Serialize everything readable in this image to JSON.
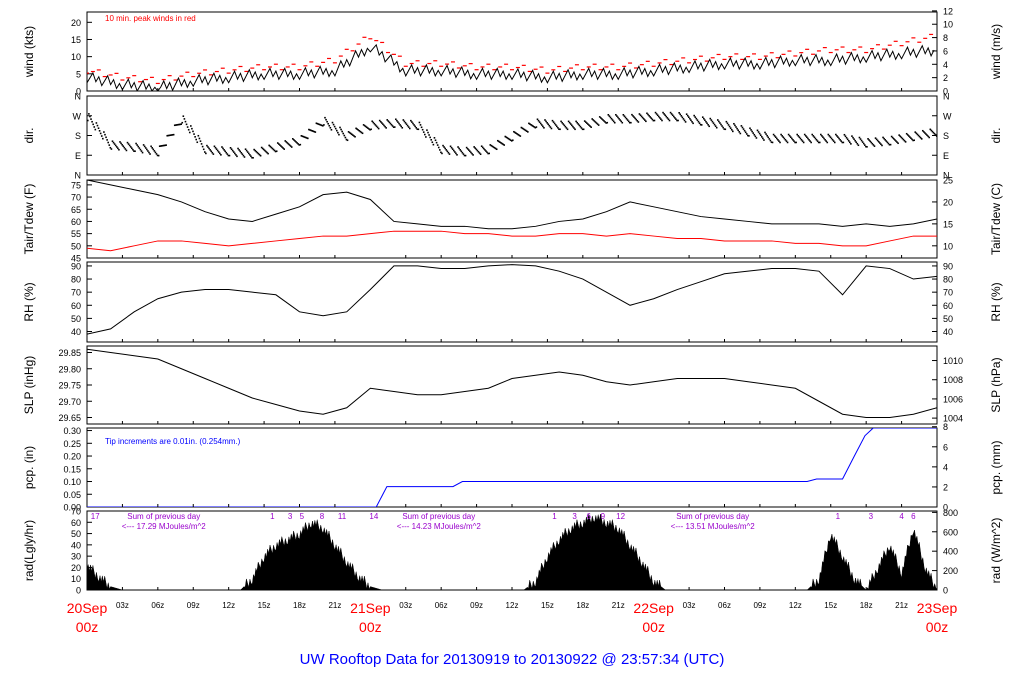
{
  "figure": {
    "footer": "UW Rooftop Data for 20130919  to  20130922 @ 23:57:34  (UTC)",
    "colors": {
      "black": "#000000",
      "red": "#ff0000",
      "blue": "#0000ff",
      "purple": "#9900cc",
      "footer": "#0000ff",
      "dates": "#ff0000"
    }
  },
  "chart_data": [
    {
      "panel": "wind",
      "type": "line",
      "ylabel_left": "wind (kts)",
      "ylabel_right": "wind (m/s)",
      "left_ticks": [
        "0",
        "5",
        "10",
        "15",
        "20"
      ],
      "right_ticks": [
        "0",
        "2",
        "4",
        "6",
        "8",
        "10",
        "12"
      ],
      "ylim": [
        0,
        23
      ],
      "annotation": "10 min. peak winds in red",
      "x_hours": [
        0,
        3,
        6,
        9,
        12,
        15,
        18,
        21,
        24,
        27,
        30,
        33,
        36,
        39,
        42,
        45,
        48,
        51,
        54,
        57,
        60,
        63,
        66,
        69,
        72
      ],
      "series": [
        {
          "name": "10 min. peak winds",
          "color": "#ff0000",
          "values": [
            6,
            4,
            3,
            5,
            6,
            7,
            7,
            9,
            16,
            8,
            8,
            7,
            7,
            6,
            7,
            7,
            8,
            9,
            10,
            10,
            11,
            12,
            12,
            14,
            16
          ]
        },
        {
          "values": [
            4,
            2,
            1,
            3,
            4,
            5,
            5,
            6,
            13,
            6,
            6,
            5,
            5,
            4,
            5,
            5,
            6,
            7,
            8,
            8,
            9,
            9,
            10,
            11,
            12
          ]
        }
      ]
    },
    {
      "panel": "dir",
      "type": "scatter",
      "ylabel_left": "dir.",
      "ylabel_right": "dir.",
      "left_ticks": [
        "N",
        "E",
        "S",
        "W",
        "N"
      ],
      "right_ticks": [
        "N",
        "E",
        "S",
        "W",
        "N"
      ],
      "ylim": [
        0,
        360
      ],
      "x_hours": [
        0,
        2,
        4,
        6,
        8,
        10,
        12,
        14,
        16,
        18,
        20,
        22,
        24,
        26,
        28,
        30,
        32,
        34,
        36,
        38,
        40,
        42,
        44,
        46,
        48,
        50,
        52,
        54,
        56,
        58,
        60,
        62,
        64,
        66,
        68,
        70,
        72
      ],
      "values": [
        270,
        140,
        130,
        110,
        260,
        120,
        110,
        100,
        130,
        160,
        250,
        180,
        230,
        240,
        230,
        120,
        110,
        120,
        180,
        240,
        230,
        230,
        260,
        260,
        270,
        270,
        250,
        230,
        200,
        170,
        170,
        170,
        170,
        150,
        160,
        180,
        200
      ]
    },
    {
      "panel": "temperature",
      "type": "line",
      "ylabel_left": "Tair/Tdew (F)",
      "ylabel_right": "Tair/Tdew (C)",
      "left_ticks": [
        "45",
        "50",
        "55",
        "60",
        "65",
        "70",
        "75"
      ],
      "right_ticks": [
        "10",
        "15",
        "20",
        "25"
      ],
      "ylim": [
        45,
        77
      ],
      "x_hours": [
        0,
        2,
        4,
        6,
        8,
        10,
        12,
        14,
        16,
        18,
        20,
        22,
        24,
        26,
        28,
        30,
        32,
        34,
        36,
        38,
        40,
        42,
        44,
        46,
        48,
        50,
        52,
        54,
        56,
        58,
        60,
        62,
        64,
        66,
        68,
        70,
        72
      ],
      "series": [
        {
          "name": "Tair",
          "color": "#000000",
          "values": [
            77,
            75,
            73,
            71,
            68,
            64,
            61,
            60,
            63,
            66,
            71,
            72,
            69,
            60,
            59,
            58,
            58,
            57,
            57,
            58,
            60,
            61,
            64,
            68,
            66,
            64,
            62,
            61,
            60,
            59,
            59,
            59,
            58,
            59,
            58,
            59,
            61
          ]
        },
        {
          "name": "Tdew",
          "color": "#ff0000",
          "values": [
            49,
            48,
            50,
            52,
            52,
            51,
            50,
            51,
            52,
            53,
            54,
            54,
            55,
            56,
            56,
            56,
            55,
            55,
            54,
            54,
            55,
            55,
            54,
            55,
            54,
            53,
            53,
            52,
            52,
            52,
            51,
            51,
            50,
            50,
            52,
            54,
            54
          ]
        }
      ]
    },
    {
      "panel": "rh",
      "type": "line",
      "ylabel_left": "RH (%)",
      "ylabel_right": "RH (%)",
      "left_ticks": [
        "40",
        "50",
        "60",
        "70",
        "80",
        "90"
      ],
      "right_ticks": [
        "40",
        "50",
        "60",
        "70",
        "80",
        "90"
      ],
      "ylim": [
        32,
        93
      ],
      "x_hours": [
        0,
        2,
        4,
        6,
        8,
        10,
        12,
        14,
        16,
        18,
        20,
        22,
        24,
        26,
        28,
        30,
        32,
        34,
        36,
        38,
        40,
        42,
        44,
        46,
        48,
        50,
        52,
        54,
        56,
        58,
        60,
        62,
        64,
        66,
        68,
        70,
        72
      ],
      "values": [
        38,
        42,
        55,
        65,
        70,
        72,
        72,
        70,
        68,
        55,
        52,
        55,
        72,
        90,
        90,
        88,
        88,
        90,
        91,
        90,
        86,
        80,
        70,
        60,
        65,
        72,
        78,
        84,
        86,
        88,
        88,
        86,
        68,
        90,
        88,
        80,
        82
      ]
    },
    {
      "panel": "slp",
      "type": "line",
      "ylabel_left": "SLP (inHg)",
      "ylabel_right": "SLP (hPa)",
      "left_ticks": [
        "29.65",
        "29.70",
        "29.75",
        "29.80",
        "29.85"
      ],
      "right_ticks": [
        "1004",
        "1006",
        "1008",
        "1010"
      ],
      "ylim": [
        29.63,
        29.87
      ],
      "x_hours": [
        0,
        2,
        4,
        6,
        8,
        10,
        12,
        14,
        16,
        18,
        20,
        22,
        24,
        26,
        28,
        30,
        32,
        34,
        36,
        38,
        40,
        42,
        44,
        46,
        48,
        50,
        52,
        54,
        56,
        58,
        60,
        62,
        64,
        66,
        68,
        70,
        72
      ],
      "values": [
        29.86,
        29.85,
        29.84,
        29.83,
        29.8,
        29.77,
        29.74,
        29.71,
        29.69,
        29.67,
        29.66,
        29.68,
        29.74,
        29.73,
        29.72,
        29.72,
        29.73,
        29.74,
        29.77,
        29.78,
        29.79,
        29.78,
        29.76,
        29.75,
        29.76,
        29.77,
        29.77,
        29.77,
        29.76,
        29.75,
        29.74,
        29.7,
        29.66,
        29.65,
        29.65,
        29.66,
        29.68
      ]
    },
    {
      "panel": "pcp",
      "type": "line",
      "ylabel_left": "pcp. (in)",
      "ylabel_right": "pcp. (mm)",
      "left_ticks": [
        "0.00",
        "0.05",
        "0.10",
        "0.15",
        "0.20",
        "0.25",
        "0.30"
      ],
      "right_ticks": [
        "0",
        "2",
        "4",
        "6",
        "8"
      ],
      "ylim": [
        0,
        0.31
      ],
      "annotation": "Tip increments are 0.01in. (0.254mm.)",
      "x_hours": [
        0,
        24.5,
        25.4,
        31,
        31.8,
        61,
        61.8,
        64,
        65,
        65.9,
        66.6,
        72
      ],
      "values": [
        0,
        0,
        0.08,
        0.08,
        0.1,
        0.1,
        0.11,
        0.11,
        0.2,
        0.28,
        0.31,
        0.31
      ]
    },
    {
      "panel": "rad",
      "type": "area",
      "ylabel_left": "rad(Lgly/hr)",
      "ylabel_right": "rad (W/m^2)",
      "left_ticks": [
        "0",
        "10",
        "20",
        "30",
        "40",
        "50",
        "60",
        "70"
      ],
      "right_ticks": [
        "0",
        "200",
        "400",
        "600",
        "800"
      ],
      "ylim": [
        0,
        70
      ],
      "x_hours": [
        0,
        1,
        2,
        3,
        13,
        14,
        15,
        16,
        17,
        18,
        19,
        20,
        21,
        22,
        23,
        24,
        25,
        37,
        38,
        39,
        40,
        41,
        42,
        43,
        44,
        45,
        46,
        47,
        48,
        49,
        61,
        62,
        63,
        64,
        65,
        66,
        67,
        68,
        69,
        70,
        71,
        72
      ],
      "values": [
        22,
        12,
        3,
        0,
        0,
        10,
        30,
        40,
        45,
        50,
        60,
        55,
        40,
        25,
        12,
        3,
        0,
        0,
        8,
        30,
        45,
        55,
        60,
        65,
        60,
        55,
        40,
        25,
        8,
        0,
        0,
        10,
        50,
        30,
        10,
        0,
        20,
        40,
        15,
        55,
        20,
        0
      ],
      "hour_marks": [
        {
          "hour": 0.7,
          "label": "17"
        },
        {
          "hour": 15.7,
          "label": "1"
        },
        {
          "hour": 17.2,
          "label": "3"
        },
        {
          "hour": 18.2,
          "label": "5"
        },
        {
          "hour": 19.9,
          "label": "8"
        },
        {
          "hour": 21.6,
          "label": "11"
        },
        {
          "hour": 24.3,
          "label": "14"
        },
        {
          "hour": 39.6,
          "label": "1"
        },
        {
          "hour": 41.3,
          "label": "3"
        },
        {
          "hour": 42.5,
          "label": "6"
        },
        {
          "hour": 43.7,
          "label": "9"
        },
        {
          "hour": 45.2,
          "label": "12"
        },
        {
          "hour": 63.6,
          "label": "1"
        },
        {
          "hour": 66.4,
          "label": "3"
        },
        {
          "hour": 69.0,
          "label": "4"
        },
        {
          "hour": 70.0,
          "label": "6"
        }
      ],
      "day_notes": [
        {
          "hour": 6.5,
          "title": "Sum of previous day",
          "value": "<--- 17.29 MJoules/m^2"
        },
        {
          "hour": 29.8,
          "title": "Sum of previous day",
          "value": "<--- 14.23 MJoules/m^2"
        },
        {
          "hour": 53.0,
          "title": "Sum of previous day",
          "value": "<--- 13.51 MJoules/m^2"
        }
      ]
    }
  ],
  "x_axis": {
    "hour_ticks": [
      {
        "hour": 3,
        "label": "03z"
      },
      {
        "hour": 6,
        "label": "06z"
      },
      {
        "hour": 9,
        "label": "09z"
      },
      {
        "hour": 12,
        "label": "12z"
      },
      {
        "hour": 15,
        "label": "15z"
      },
      {
        "hour": 18,
        "label": "18z"
      },
      {
        "hour": 21,
        "label": "21z"
      },
      {
        "hour": 27,
        "label": "03z"
      },
      {
        "hour": 30,
        "label": "06z"
      },
      {
        "hour": 33,
        "label": "09z"
      },
      {
        "hour": 36,
        "label": "12z"
      },
      {
        "hour": 39,
        "label": "15z"
      },
      {
        "hour": 42,
        "label": "18z"
      },
      {
        "hour": 45,
        "label": "21z"
      },
      {
        "hour": 51,
        "label": "03z"
      },
      {
        "hour": 54,
        "label": "06z"
      },
      {
        "hour": 57,
        "label": "09z"
      },
      {
        "hour": 60,
        "label": "12z"
      },
      {
        "hour": 63,
        "label": "15z"
      },
      {
        "hour": 66,
        "label": "18z"
      },
      {
        "hour": 69,
        "label": "21z"
      }
    ],
    "day_labels": [
      {
        "hour": 0,
        "date": "20Sep",
        "time": "00z"
      },
      {
        "hour": 24,
        "date": "21Sep",
        "time": "00z"
      },
      {
        "hour": 48,
        "date": "22Sep",
        "time": "00z"
      },
      {
        "hour": 72,
        "date": "23Sep",
        "time": "00z"
      }
    ]
  }
}
